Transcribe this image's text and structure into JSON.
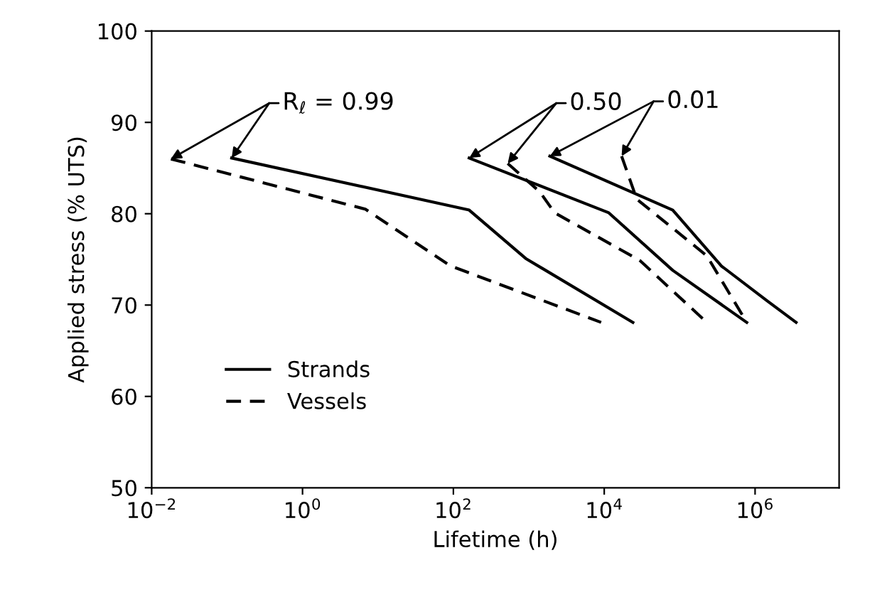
{
  "chart_data": {
    "type": "line",
    "xlabel": "Lifetime (h)",
    "ylabel": "Applied stress (% UTS)",
    "log": "x",
    "xlim": [
      0.01,
      13000000
    ],
    "ylim": [
      50,
      100
    ],
    "xticks": [
      {
        "value": 0.01,
        "label": "10$^{−2}$"
      },
      {
        "value": 1,
        "label": "10$^{0}$"
      },
      {
        "value": 100,
        "label": "10$^{2}$"
      },
      {
        "value": 10000,
        "label": "10$^{4}$"
      },
      {
        "value": 1000000,
        "label": "10$^{6}$"
      }
    ],
    "yticks": [
      50,
      60,
      70,
      80,
      90,
      100
    ],
    "grid": false,
    "legend": "bottom left",
    "marker": "none",
    "series": [
      {
        "name": "Strands",
        "color": "#000000",
        "line_style": "solid",
        "x": [
          0.115,
          162,
          910,
          24000
        ],
        "values": [
          86.1,
          80.4,
          75.1,
          68.1
        ]
      },
      {
        "name": "Vessels",
        "color": "#000000",
        "line_style": "dashed",
        "x": [
          0.018,
          6.8,
          91,
          9100
        ],
        "values": [
          86.0,
          80.5,
          74.3,
          68.1
        ]
      },
      {
        "color": "#000000",
        "line_style": "solid",
        "x": [
          162,
          11500,
          81000,
          776000
        ],
        "values": [
          86.1,
          80.1,
          73.8,
          68.1
        ]
      },
      {
        "color": "#000000",
        "line_style": "dashed",
        "x": [
          525,
          1400,
          2200,
          29500,
          229000
        ],
        "values": [
          85.5,
          82.4,
          80.1,
          74.9,
          68.1
        ]
      },
      {
        "color": "#000000",
        "line_style": "solid",
        "x": [
          1900,
          81000,
          355000,
          1480000,
          3500000
        ],
        "values": [
          86.3,
          80.4,
          74.3,
          70.4,
          68.1
        ]
      },
      {
        "color": "#000000",
        "line_style": "dashed",
        "x": [
          17000,
          27000,
          229000,
          776000
        ],
        "values": [
          86.3,
          81.6,
          75.4,
          68.1
        ]
      }
    ],
    "annotations": [
      {
        "text": "R$_{ℓ}$ = 0.99",
        "x": 0.115,
        "y": 86.1
      },
      {
        "text": "0.50",
        "x": 162,
        "y": 86.1
      },
      {
        "text": "0.01",
        "x": 1900,
        "y": 86.3
      }
    ]
  }
}
